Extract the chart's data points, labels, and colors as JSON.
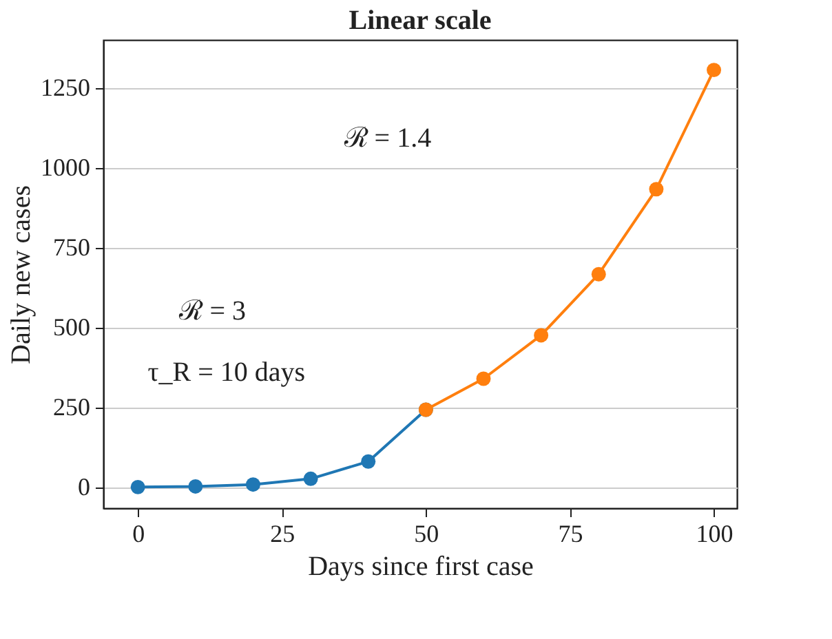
{
  "chart_data": {
    "type": "line",
    "title": "Linear scale",
    "xlabel": "Days since first case",
    "ylabel": "Daily new cases",
    "series": [
      {
        "color": "#1f77b4",
        "x": [
          0,
          10,
          20,
          30,
          40,
          50
        ],
        "values": [
          1,
          3,
          9,
          27,
          81,
          243
        ]
      },
      {
        "color": "#ff7f0e",
        "x": [
          50,
          60,
          70,
          80,
          90,
          100
        ],
        "values": [
          243,
          340,
          476,
          667,
          933,
          1306
        ]
      }
    ],
    "xlim": [
      -6,
      104
    ],
    "xticks": [
      0,
      25,
      50,
      75,
      100
    ],
    "ylim": [
      -65,
      1400
    ],
    "yticks": [
      0,
      250,
      500,
      750,
      1000,
      1250
    ],
    "grid": "y",
    "marker": "circle",
    "line_style": "solid",
    "annotations": [
      "ℛ = 3",
      "τ_R = 10 days",
      "ℛ = 1.4"
    ]
  }
}
